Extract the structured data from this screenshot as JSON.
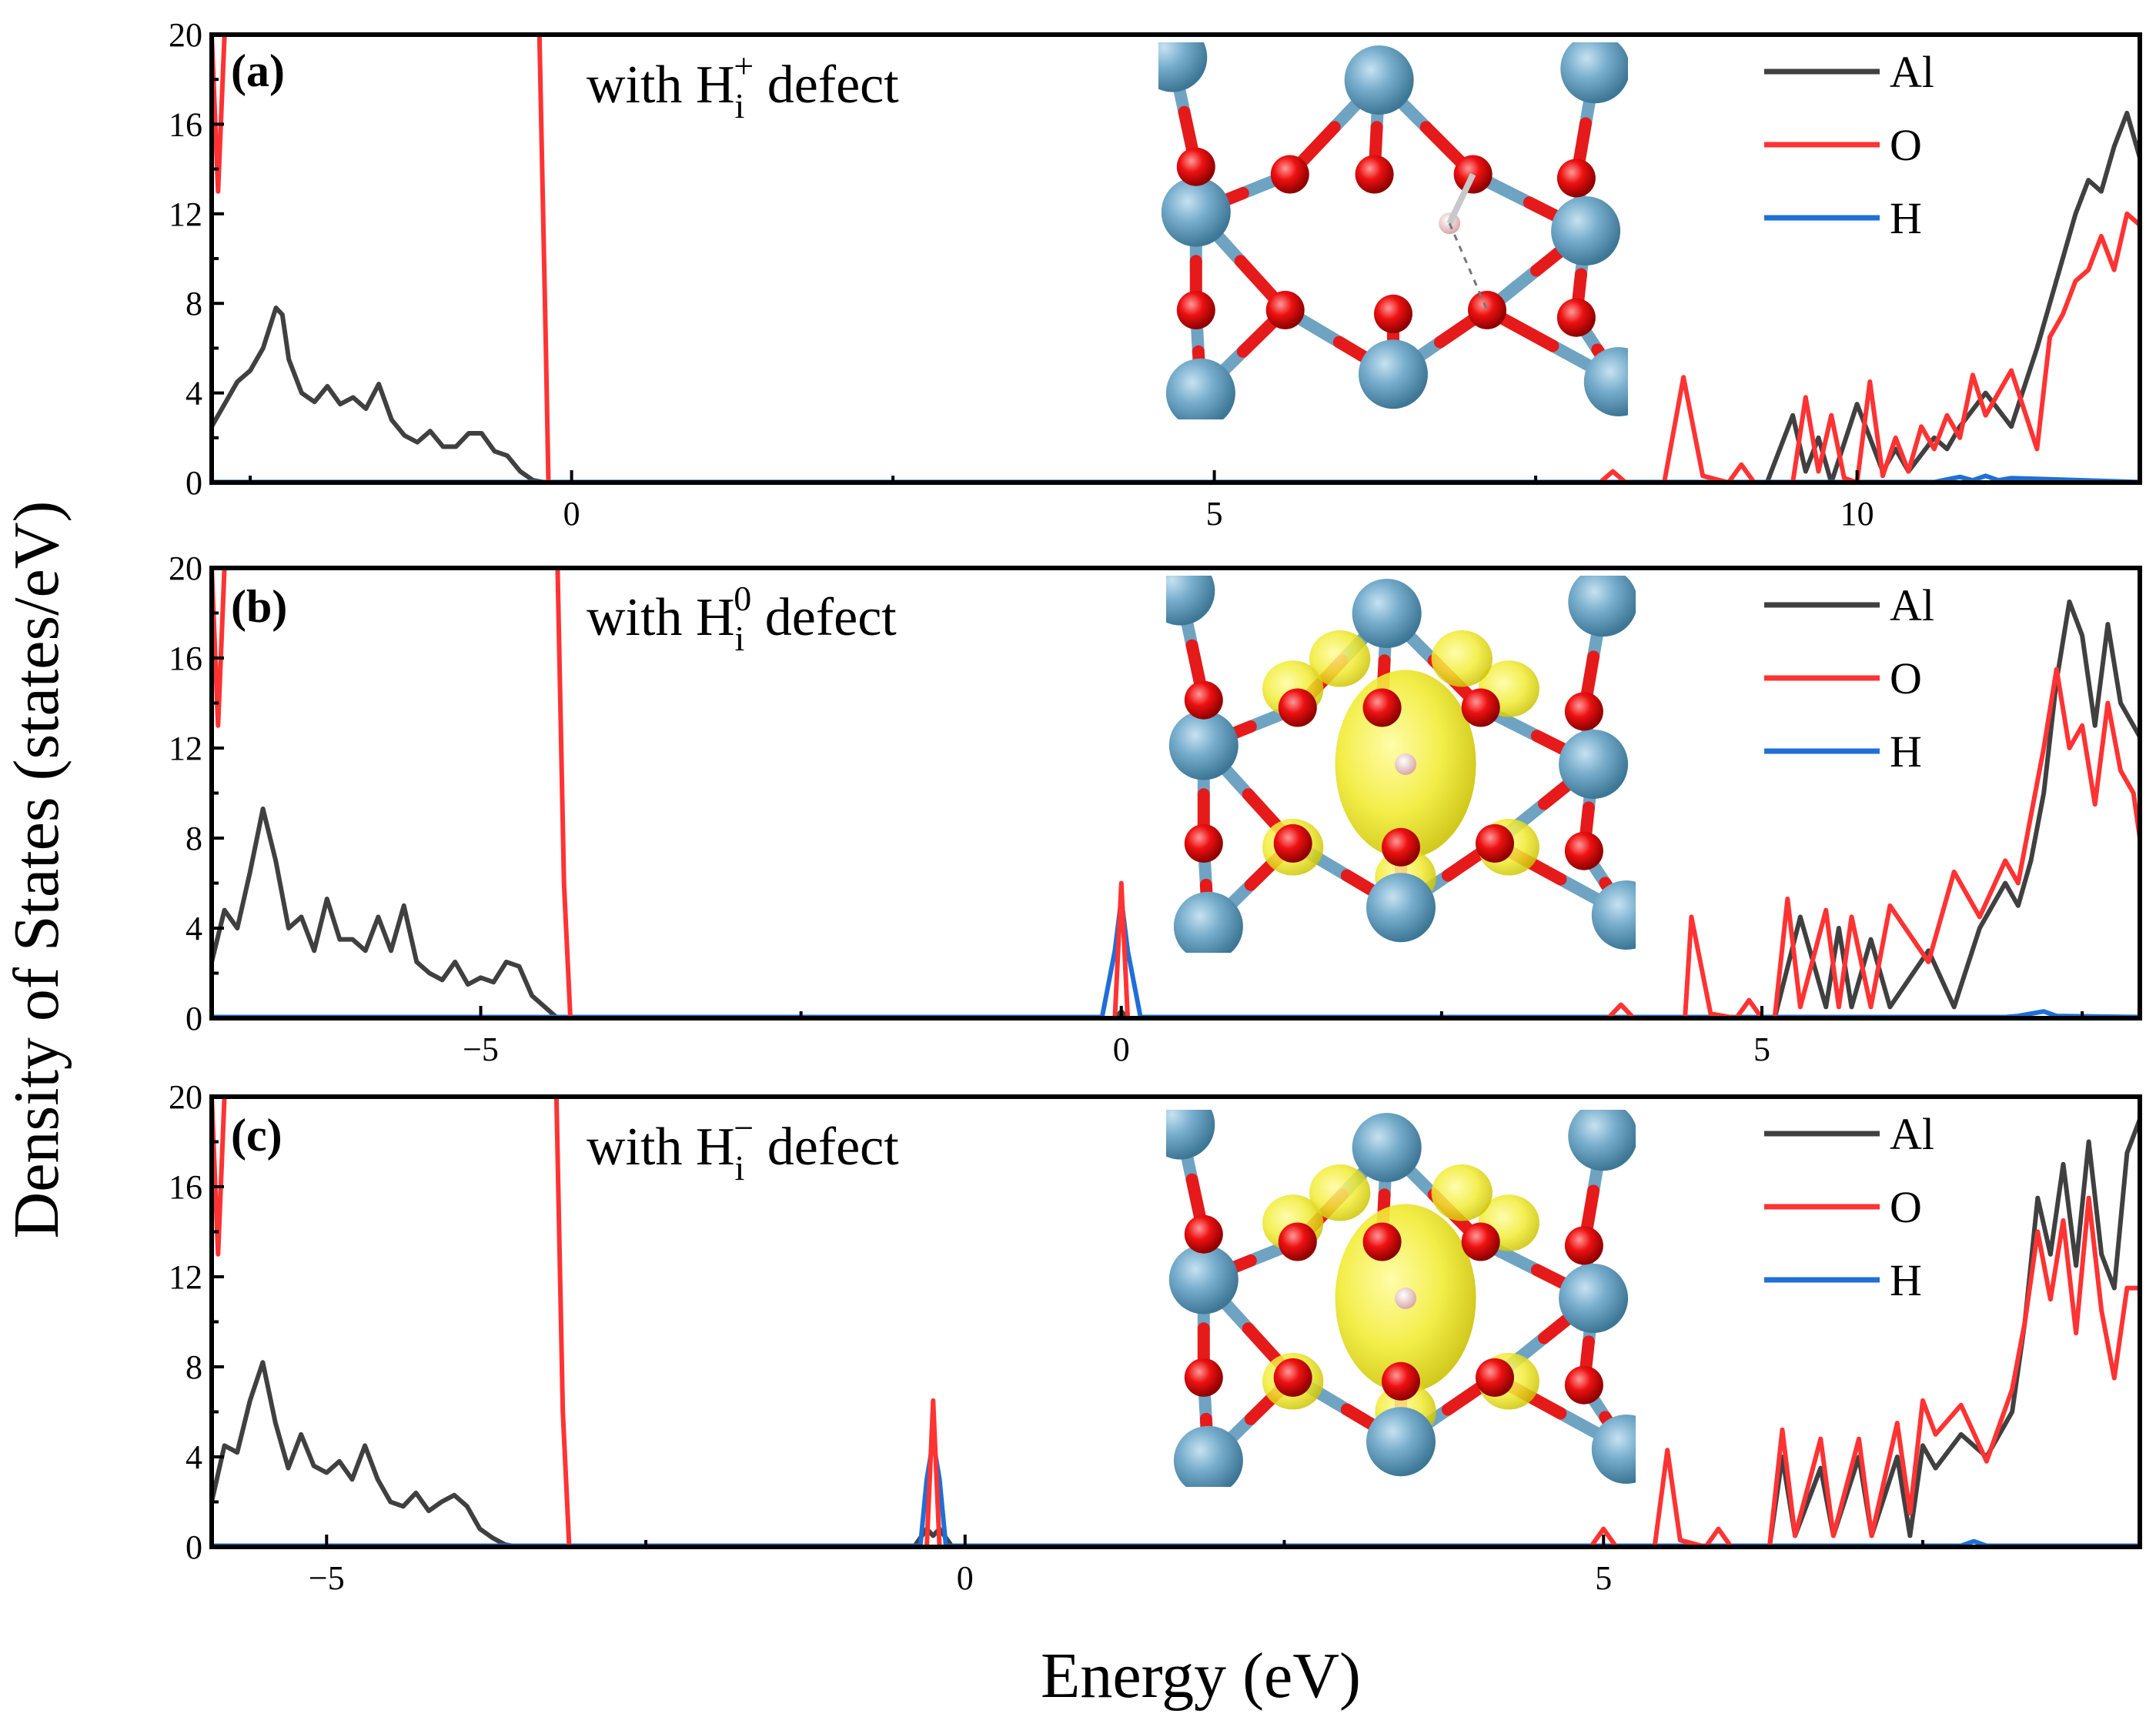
{
  "figure": {
    "ylabel": "Density of States (states/eV)",
    "xlabel": "Energy (eV)"
  },
  "colors": {
    "Al": "#404040",
    "O": "#ff3333",
    "H": "#1f6fd6"
  },
  "chart_data": [
    {
      "type": "line",
      "panel": "(a)",
      "label": {
        "prefix": "with H",
        "sub": "i",
        "sup": "+",
        "suffix": " defect"
      },
      "legend": [
        "Al",
        "O",
        "H"
      ],
      "legend_position": "top-right",
      "xlim": [
        -2.8,
        12.2
      ],
      "ylim": [
        0,
        20
      ],
      "xticks": [
        0,
        5,
        10
      ],
      "xtick_labels": [
        "0",
        "5",
        "10"
      ],
      "yticks": [
        0,
        4,
        8,
        12,
        16,
        20
      ],
      "ytick_labels": [
        "0",
        "4",
        "8",
        "12",
        "16",
        "20"
      ],
      "series": [
        {
          "name": "Al",
          "x": [
            -2.8,
            -2.6,
            -2.5,
            -2.4,
            -2.3,
            -2.25,
            -2.2,
            -2.1,
            -2.0,
            -1.9,
            -1.8,
            -1.7,
            -1.6,
            -1.5,
            -1.4,
            -1.3,
            -1.2,
            -1.1,
            -1.0,
            -0.9,
            -0.8,
            -0.7,
            -0.6,
            -0.5,
            -0.4,
            -0.3,
            -0.2,
            -0.1,
            0.0,
            8.0,
            8.6,
            8.7,
            8.8,
            9.3,
            9.5,
            9.6,
            9.7,
            9.8,
            10.0,
            10.2,
            10.3,
            10.4,
            10.6,
            10.7,
            10.8,
            11.0,
            11.2,
            11.4,
            11.5,
            11.6,
            11.7,
            11.8,
            11.9,
            12.0,
            12.1,
            12.2
          ],
          "y": [
            2.5,
            4.5,
            5.0,
            6.0,
            7.8,
            7.5,
            5.5,
            4.0,
            3.6,
            4.3,
            3.5,
            3.8,
            3.3,
            4.4,
            2.8,
            2.1,
            1.8,
            2.3,
            1.6,
            1.6,
            2.2,
            2.2,
            1.4,
            1.2,
            0.5,
            0.1,
            0,
            0,
            0,
            0,
            0,
            0,
            0,
            0,
            3.0,
            0.5,
            2.0,
            0,
            3.5,
            0.5,
            1.5,
            0.5,
            2.0,
            1.5,
            2.5,
            4.0,
            2.5,
            6.0,
            8.0,
            10.0,
            12.0,
            13.5,
            13.0,
            15.0,
            16.5,
            14.5
          ]
        },
        {
          "name": "O",
          "x": [
            -2.8,
            -2.75,
            -2.7,
            -0.25,
            -0.2,
            -0.18,
            -0.1,
            0.0,
            7.8,
            8.0,
            8.1,
            8.2,
            8.5,
            8.65,
            8.8,
            9.0,
            9.1,
            9.2,
            9.5,
            9.6,
            9.7,
            9.8,
            9.9,
            10.0,
            10.1,
            10.2,
            10.3,
            10.4,
            10.5,
            10.6,
            10.7,
            10.8,
            10.9,
            11.0,
            11.2,
            11.4,
            11.5,
            11.6,
            11.7,
            11.8,
            11.9,
            12.0,
            12.1,
            12.2
          ],
          "y": [
            20,
            13,
            20,
            20,
            6,
            0,
            0,
            0,
            0,
            0,
            0.5,
            0,
            0,
            4.7,
            0.3,
            0,
            0.8,
            0,
            0,
            3.8,
            0.5,
            3.0,
            0.2,
            0,
            4.5,
            0.3,
            2.0,
            0.5,
            2.5,
            1.5,
            3.0,
            2.0,
            4.8,
            3.0,
            5.0,
            1.5,
            6.5,
            7.5,
            9.0,
            9.5,
            11.0,
            9.5,
            12.0,
            11.5
          ]
        },
        {
          "name": "H",
          "x": [
            -2.8,
            10.6,
            10.8,
            10.9,
            11.0,
            11.1,
            11.2,
            12.2
          ],
          "y": [
            0.02,
            0.02,
            0.25,
            0.1,
            0.3,
            0.1,
            0.2,
            0.02
          ]
        }
      ]
    },
    {
      "type": "line",
      "panel": "(b)",
      "label": {
        "prefix": "with H",
        "sub": "i",
        "sup": "0",
        "suffix": " defect"
      },
      "legend": [
        "Al",
        "O",
        "H"
      ],
      "legend_position": "top-right",
      "xlim": [
        -7.1,
        7.95
      ],
      "ylim": [
        0,
        20
      ],
      "xticks": [
        -5,
        0,
        5
      ],
      "xtick_labels": [
        "−5",
        "0",
        "5"
      ],
      "yticks": [
        0,
        4,
        8,
        12,
        16,
        20
      ],
      "ytick_labels": [
        "0",
        "4",
        "8",
        "12",
        "16",
        "20"
      ],
      "series": [
        {
          "name": "Al",
          "x": [
            -7.1,
            -7.0,
            -6.9,
            -6.8,
            -6.7,
            -6.6,
            -6.5,
            -6.4,
            -6.3,
            -6.2,
            -6.1,
            -6.0,
            -5.9,
            -5.8,
            -5.7,
            -5.6,
            -5.5,
            -5.4,
            -5.3,
            -5.2,
            -5.1,
            -5.0,
            -4.9,
            -4.8,
            -4.7,
            -4.6,
            -4.5,
            -4.4,
            -4.3,
            -4.2,
            -4.0,
            -0.2,
            -0.05,
            0.0,
            0.05,
            0.2,
            4.0,
            4.45,
            4.6,
            5.0,
            5.1,
            5.3,
            5.5,
            5.6,
            5.7,
            5.85,
            6.0,
            6.3,
            6.5,
            6.7,
            6.9,
            7.0,
            7.1,
            7.2,
            7.3,
            7.4,
            7.5,
            7.6,
            7.7,
            7.8,
            7.95
          ],
          "y": [
            2.5,
            4.8,
            4.0,
            6.5,
            9.3,
            7.0,
            4.0,
            4.5,
            3.0,
            5.3,
            3.5,
            3.5,
            3.0,
            4.5,
            3.0,
            5.0,
            2.5,
            2.0,
            1.7,
            2.5,
            1.5,
            1.8,
            1.6,
            2.5,
            2.3,
            1.0,
            0.5,
            0,
            0,
            0,
            0,
            0,
            0,
            0.3,
            0,
            0,
            0,
            0,
            0,
            0,
            0,
            4.5,
            0.5,
            4.0,
            0.5,
            3.5,
            0.5,
            3.0,
            0.5,
            4.0,
            6.0,
            5.0,
            7.0,
            10.0,
            15.0,
            18.5,
            17.0,
            13.0,
            17.5,
            14.0,
            12.5
          ]
        },
        {
          "name": "O",
          "x": [
            -7.1,
            -7.05,
            -7.0,
            -4.4,
            -4.35,
            -4.3,
            -0.2,
            -0.05,
            0.0,
            0.05,
            0.2,
            3.8,
            3.9,
            4.0,
            4.4,
            4.45,
            4.6,
            4.8,
            4.9,
            5.0,
            5.1,
            5.2,
            5.3,
            5.5,
            5.6,
            5.7,
            5.85,
            6.0,
            6.3,
            6.5,
            6.7,
            6.9,
            7.0,
            7.1,
            7.2,
            7.3,
            7.4,
            7.5,
            7.6,
            7.7,
            7.8,
            7.9,
            7.95
          ],
          "y": [
            20,
            13,
            20,
            20,
            6,
            0,
            0,
            0,
            6,
            0,
            0,
            0,
            0.6,
            0,
            0,
            4.5,
            0.2,
            0,
            0.8,
            0,
            0,
            5.3,
            0.5,
            4.8,
            0.5,
            4.5,
            0.5,
            5.0,
            2.5,
            6.5,
            4.5,
            7.0,
            6.0,
            9.0,
            12.0,
            15.5,
            12.0,
            13.0,
            9.5,
            14.0,
            11.0,
            10.0,
            8.0
          ]
        },
        {
          "name": "H",
          "x": [
            -7.1,
            -0.15,
            -0.05,
            0.0,
            0.05,
            0.15,
            6.9,
            7.0,
            7.2,
            7.3,
            7.95
          ],
          "y": [
            0.05,
            0.05,
            3.0,
            5.3,
            3.0,
            0.05,
            0.05,
            0.1,
            0.3,
            0.1,
            0.05
          ]
        }
      ]
    },
    {
      "type": "line",
      "panel": "(c)",
      "label": {
        "prefix": "with H",
        "sub": "i",
        "sup": "−",
        "suffix": " defect"
      },
      "legend": [
        "Al",
        "O",
        "H"
      ],
      "legend_position": "top-right",
      "xlim": [
        -5.9,
        9.2
      ],
      "ylim": [
        0,
        20
      ],
      "xticks": [
        -5,
        0,
        5
      ],
      "xtick_labels": [
        "−5",
        "0",
        "5"
      ],
      "yticks": [
        0,
        4,
        8,
        12,
        16,
        20
      ],
      "ytick_labels": [
        "0",
        "4",
        "8",
        "12",
        "16",
        "20"
      ],
      "series": [
        {
          "name": "Al",
          "x": [
            -5.9,
            -5.8,
            -5.7,
            -5.6,
            -5.5,
            -5.4,
            -5.3,
            -5.2,
            -5.1,
            -5.0,
            -4.9,
            -4.8,
            -4.7,
            -4.6,
            -4.5,
            -4.4,
            -4.3,
            -4.2,
            -4.1,
            -4.0,
            -3.9,
            -3.8,
            -3.7,
            -3.6,
            -3.5,
            -3.4,
            -3.3,
            -3.2,
            -3.1,
            -3.0,
            -2.5,
            -0.4,
            -0.3,
            -0.25,
            -0.2,
            -0.1,
            5.0,
            5.5,
            5.6,
            6.0,
            6.3,
            6.4,
            6.5,
            6.7,
            6.8,
            7.0,
            7.1,
            7.3,
            7.4,
            7.5,
            7.6,
            7.8,
            8.0,
            8.2,
            8.3,
            8.4,
            8.5,
            8.6,
            8.7,
            8.8,
            8.9,
            9.0,
            9.1,
            9.2
          ],
          "y": [
            2.0,
            4.5,
            4.2,
            6.5,
            8.2,
            5.5,
            3.5,
            5.0,
            3.6,
            3.3,
            3.8,
            3.0,
            4.5,
            3.0,
            2.0,
            1.8,
            2.4,
            1.6,
            2.0,
            2.3,
            1.8,
            0.8,
            0.4,
            0.1,
            0,
            0,
            0,
            0,
            0,
            0,
            0,
            0,
            0.8,
            0.5,
            0.8,
            0,
            0,
            0,
            0,
            0,
            0,
            4.0,
            0.5,
            3.5,
            0.5,
            4.0,
            0.5,
            4.0,
            0.5,
            4.5,
            3.5,
            5.0,
            4.0,
            6.0,
            10.0,
            15.5,
            13.0,
            17.0,
            12.5,
            18.0,
            13.0,
            11.5,
            17.5,
            19.0
          ]
        },
        {
          "name": "O",
          "x": [
            -5.9,
            -5.85,
            -5.8,
            -3.2,
            -3.15,
            -3.1,
            -0.4,
            -0.3,
            -0.25,
            -0.2,
            -0.1,
            4.9,
            5.0,
            5.1,
            5.4,
            5.5,
            5.6,
            5.8,
            5.9,
            6.0,
            6.3,
            6.4,
            6.5,
            6.7,
            6.8,
            7.0,
            7.1,
            7.3,
            7.4,
            7.5,
            7.6,
            7.8,
            8.0,
            8.2,
            8.3,
            8.4,
            8.5,
            8.6,
            8.7,
            8.8,
            8.9,
            9.0,
            9.1,
            9.2
          ],
          "y": [
            20,
            13,
            20,
            20,
            6,
            0,
            0,
            0,
            6.5,
            0,
            0,
            0,
            0.8,
            0,
            0,
            4.3,
            0.3,
            0,
            0.8,
            0,
            0,
            5.2,
            0.5,
            4.8,
            0.5,
            4.8,
            0.5,
            5.5,
            1.5,
            6.5,
            5.0,
            6.3,
            3.8,
            7.0,
            10.0,
            14.0,
            11.0,
            14.5,
            9.5,
            15.5,
            10.5,
            7.5,
            11.5,
            11.5
          ]
        },
        {
          "name": "H",
          "x": [
            -5.9,
            -0.35,
            -0.3,
            -0.25,
            -0.2,
            -0.15,
            7.8,
            7.9,
            8.0,
            9.2
          ],
          "y": [
            0.05,
            0.05,
            3.0,
            4.7,
            3.0,
            0.05,
            0.05,
            0.25,
            0.05,
            0.05
          ]
        }
      ]
    }
  ]
}
